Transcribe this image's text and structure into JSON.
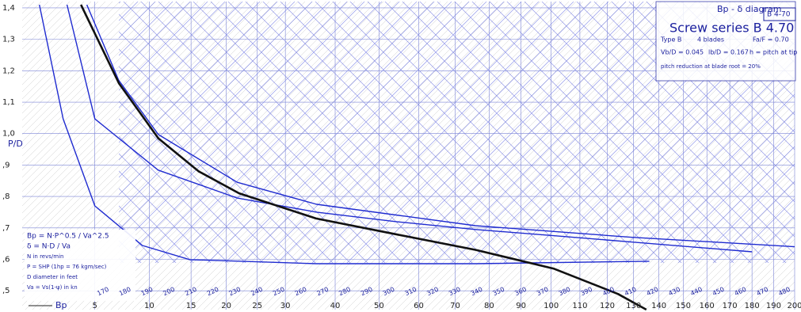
{
  "chart_data": {
    "type": "line",
    "title": "Bp - δ diagram",
    "subtitle": "Screw series B 4.70",
    "badge": "B 4-70",
    "notes": [
      "Type B",
      "4 blades",
      "Fa/F = 0.70",
      "Vb/D = 0.045",
      "lb/D = 0.167",
      "h = pitch at tip",
      "pitch reduction at blade root = 20%"
    ],
    "formulas": [
      "Bp = N·P^0.5 / Va^2.5",
      "δ = N·D / Va",
      "N in revs/min",
      "P = SHP (1hp = 76 kgm/sec)",
      "D diameter in feet",
      "Va = Vs(1-ψ) in kn"
    ],
    "x_label": "Bp",
    "y_label": "P/D",
    "xscale": "sqrt",
    "xlim": [
      1,
      200
    ],
    "xticks": [
      5,
      10,
      15,
      20,
      25,
      30,
      40,
      50,
      60,
      70,
      80,
      90,
      100,
      110,
      120,
      130,
      140,
      150,
      160,
      170,
      180,
      190,
      200
    ],
    "ylim": [
      0.44,
      1.42
    ],
    "yticks": [
      {
        "value": 0.5,
        "label": ",5"
      },
      {
        "value": 0.6,
        "label": ",6"
      },
      {
        "value": 0.7,
        "label": ",7"
      },
      {
        "value": 0.8,
        "label": ",8"
      },
      {
        "value": 0.9,
        "label": ",9"
      },
      {
        "value": 1.0,
        "label": "1,0"
      },
      {
        "value": 1.1,
        "label": "1,1"
      },
      {
        "value": 1.2,
        "label": "1,2"
      },
      {
        "value": 1.3,
        "label": "1,3"
      },
      {
        "value": 1.4,
        "label": "1,4"
      }
    ],
    "grid": true,
    "delta_labels": [
      "170",
      "180",
      "190",
      "200",
      "210",
      "220",
      "230",
      "240",
      "250",
      "260",
      "270",
      "280",
      "290",
      "300",
      "310",
      "320",
      "330",
      "340",
      "350",
      "360",
      "370",
      "380",
      "390",
      "400",
      "410",
      "420",
      "430",
      "440",
      "450",
      "460",
      "470",
      "480"
    ],
    "series": [
      {
        "color": "#1f2bd0",
        "x": [
          3.11,
          5,
          10.98,
          21.7,
          36.1,
          54.2,
          75.9,
          101.1,
          129.5,
          180.1
        ],
        "values": [
          1.41,
          1.047,
          0.884,
          0.795,
          0.75,
          0.72,
          0.695,
          0.675,
          0.655,
          0.624
        ]
      },
      {
        "color": "#1f2bd0",
        "x": [
          1.67,
          2.88,
          5,
          9.27,
          14.85,
          36.1,
          75.9,
          136.2
        ],
        "values": [
          1.41,
          1.047,
          0.77,
          0.644,
          0.599,
          0.586,
          0.586,
          0.594
        ]
      },
      {
        "color": "#1f2bd0",
        "x": [
          4.41,
          6.97,
          11.0,
          21.7,
          36.1,
          75.9,
          129.5,
          200
        ],
        "values": [
          1.41,
          1.17,
          0.997,
          0.845,
          0.775,
          0.707,
          0.67,
          0.64
        ]
      },
      {
        "color": "#111111",
        "x": [
          4,
          7,
          11,
          16,
          22,
          36,
          54,
          76,
          101,
          124,
          135
        ],
        "values": [
          1.41,
          1.16,
          0.985,
          0.88,
          0.81,
          0.73,
          0.68,
          0.63,
          0.57,
          0.49,
          0.44
        ]
      }
    ]
  }
}
